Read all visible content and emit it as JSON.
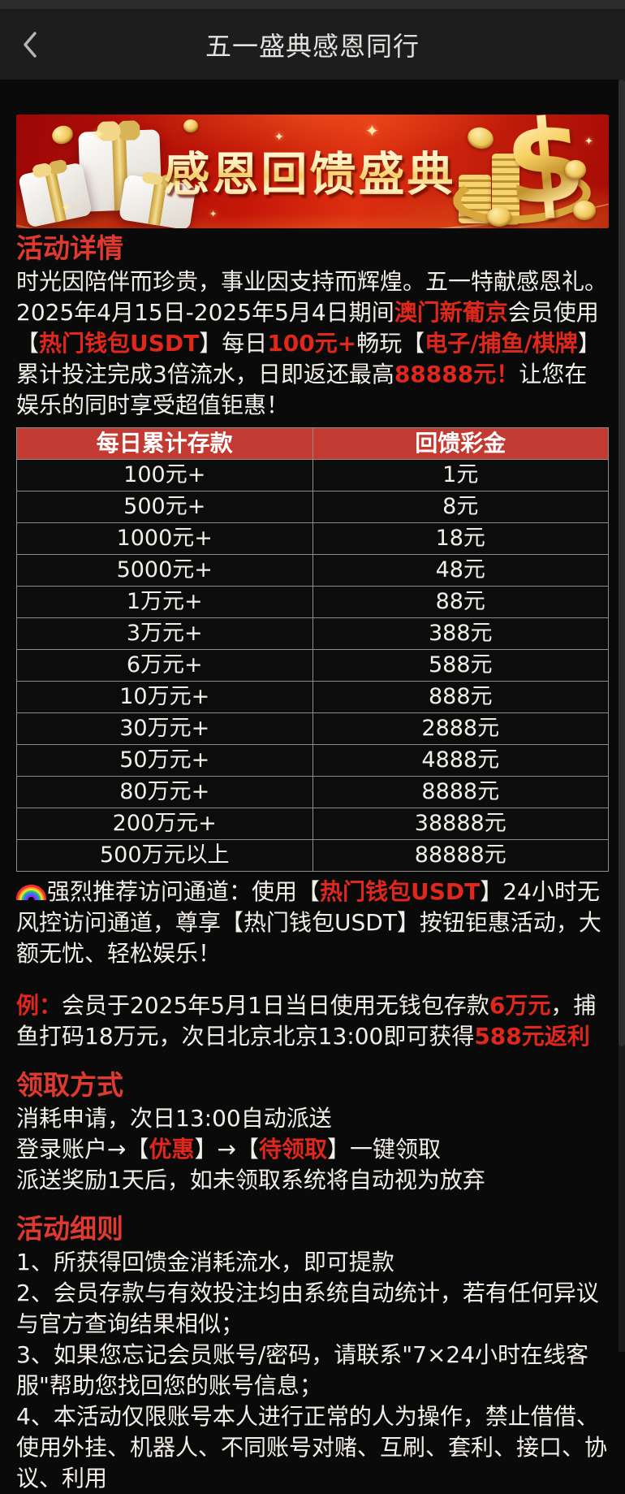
{
  "header": {
    "title": "五一盛典感恩同行",
    "back_icon": "chevron-left"
  },
  "banner": {
    "title": "感恩回馈盛典",
    "dollar_symbol": "$",
    "sparkle": "✦"
  },
  "colors": {
    "accent_red": "#e0271c",
    "heading_red": "#e03a30",
    "table_header_red": "#c23a31",
    "banner_red": "#c41708",
    "gold": "#f2cf6b"
  },
  "details": {
    "heading": "活动详情",
    "intro": [
      {
        "t": "时光因陪伴而珍贵，事业因支持而辉煌。五一特献感恩礼。2025年4月15日-2025年5月4日期间"
      },
      {
        "t": "澳门新葡京",
        "red": true,
        "bold": true
      },
      {
        "t": "会员使用【"
      },
      {
        "t": "热门钱包USDT",
        "red": true,
        "bold": true
      },
      {
        "t": "】每日"
      },
      {
        "t": "100元+",
        "red": true,
        "bold": true
      },
      {
        "t": "畅玩【"
      },
      {
        "t": "电子/捕鱼/棋牌",
        "red": true,
        "bold": true
      },
      {
        "t": "】累计投注完成3倍流水，日即返还最高"
      },
      {
        "t": "88888元！",
        "red": true,
        "bold": true
      },
      {
        "t": "让您在娱乐的同时享受超值钜惠！"
      }
    ],
    "table": {
      "headers": [
        "每日累计存款",
        "回馈彩金"
      ],
      "rows": [
        [
          "100元+",
          "1元"
        ],
        [
          "500元+",
          "8元"
        ],
        [
          "1000元+",
          "18元"
        ],
        [
          "5000元+",
          "48元"
        ],
        [
          "1万元+",
          "88元"
        ],
        [
          "3万元+",
          "388元"
        ],
        [
          "6万元+",
          "588元"
        ],
        [
          "10万元+",
          "888元"
        ],
        [
          "30万元+",
          "2888元"
        ],
        [
          "50万元+",
          "4888元"
        ],
        [
          "80万元+",
          "8888元"
        ],
        [
          "200万元+",
          "38888元"
        ],
        [
          "500万元以上",
          "88888元"
        ]
      ]
    },
    "channel": [
      {
        "t": "强烈推荐访问通道：使用【"
      },
      {
        "t": "热门钱包USDT",
        "red": true,
        "bold": true
      },
      {
        "t": "】24小时无风控访问通道，尊享【热门钱包USDT】按钮钜惠活动，大额无忧、轻松娱乐！"
      }
    ],
    "example": [
      {
        "t": "例：",
        "red": true,
        "bold": true
      },
      {
        "t": "会员于2025年5月1日当日使用无钱包存款"
      },
      {
        "t": "6万元",
        "red": true,
        "bold": true
      },
      {
        "t": "，捕鱼打码18万元，次日北京北京13:00即可获得"
      },
      {
        "t": "588元返利",
        "red": true,
        "bold": true
      }
    ]
  },
  "claim": {
    "heading": "领取方式",
    "lines": [
      [
        {
          "t": "消耗申请，次日13:00自动派送"
        }
      ],
      [
        {
          "t": "登录账户→【"
        },
        {
          "t": "优惠",
          "red": true,
          "bold": true
        },
        {
          "t": "】→【"
        },
        {
          "t": "待领取",
          "red": true,
          "bold": true
        },
        {
          "t": "】一键领取"
        }
      ],
      [
        {
          "t": "派送奖励1天后，如未领取系统将自动视为放弃"
        }
      ]
    ]
  },
  "rules": {
    "heading": "活动细则",
    "items": [
      "1、所获得回馈金消耗流水，即可提款",
      "2、会员存款与有效投注均由系统自动统计，若有任何异议与官方查询结果相似；",
      "3、如果您忘记会员账号/密码，请联系\"7×24小时在线客服\"帮助您找回您的账号信息；",
      "4、本活动仅限账号本人进行正常的人为操作，禁止借借、使用外挂、机器人、不同账号对赌、互刷、套利、接口、协议、利用"
    ]
  }
}
